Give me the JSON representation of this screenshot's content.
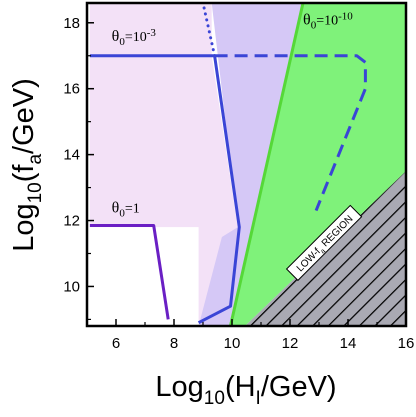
{
  "chart_data": {
    "type": "area",
    "title": "",
    "xlabel": "Log10(HI/GeV)",
    "ylabel": "Log10(fa/GeV)",
    "xlim": [
      5,
      16
    ],
    "ylim": [
      8.8,
      18.6
    ],
    "x_ticks": [
      6,
      8,
      10,
      12,
      14,
      16
    ],
    "y_ticks": [
      10,
      12,
      14,
      16,
      18
    ],
    "grid": false,
    "regions": [
      {
        "name": "",
        "color": "#f3e1f7",
        "points": [
          [
            5.1,
            18.6
          ],
          [
            9.3,
            18.6
          ],
          [
            9.3,
            17
          ],
          [
            10.2,
            11.8
          ],
          [
            10.45,
            9.5
          ],
          [
            10.45,
            8.8
          ],
          [
            8.85,
            8.8
          ],
          [
            8.85,
            11.8
          ],
          [
            5.1,
            11.8
          ]
        ]
      },
      {
        "name": "",
        "color": "#d5c8f6",
        "points": [
          [
            9.3,
            18.6
          ],
          [
            12.45,
            18.6
          ],
          [
            9.95,
            8.8
          ],
          [
            8.85,
            8.8
          ],
          [
            9.65,
            11.5
          ],
          [
            10.2,
            11.8
          ]
        ]
      },
      {
        "name": "",
        "color": "#7ff27a",
        "points": [
          [
            12.45,
            18.6
          ],
          [
            16,
            18.6
          ],
          [
            16,
            13.5
          ],
          [
            10.45,
            8.8
          ],
          [
            9.9,
            8.8
          ]
        ]
      },
      {
        "name": "",
        "color": "#a9a9b3",
        "hatched": true,
        "points": [
          [
            16,
            13.5
          ],
          [
            16,
            8.8
          ],
          [
            10.45,
            8.8
          ]
        ]
      }
    ],
    "series": [
      {
        "name": "",
        "color": "#3a45d6",
        "style": "solid",
        "x": [
          5.1,
          9.4,
          10.25,
          9.95,
          8.85
        ],
        "y": [
          17,
          17,
          11.8,
          9.4,
          8.9
        ]
      },
      {
        "name": "",
        "color": "#3a45d6",
        "style": "dotted",
        "x": [
          9.4,
          9.0
        ],
        "y": [
          17,
          18.6
        ]
      },
      {
        "name": "",
        "color": "#3a45d6",
        "style": "dashed",
        "x": [
          9.4,
          14.3,
          14.6,
          14.6,
          12.9
        ],
        "y": [
          17,
          17,
          16.8,
          16.0,
          12.3
        ]
      },
      {
        "name": "",
        "color": "#6a1fc4",
        "style": "solid",
        "x": [
          5.1,
          7.3,
          7.8
        ],
        "y": [
          11.85,
          11.85,
          9.0
        ]
      },
      {
        "name": "",
        "color": "#55d838",
        "style": "solid",
        "x": [
          12.45,
          9.95
        ],
        "y": [
          18.6,
          8.8
        ]
      }
    ],
    "annotations": [
      {
        "text": "θ0=10-3",
        "base": "θ",
        "sub": "0",
        "mid": "=10",
        "sup": "-3",
        "x": 5.85,
        "y": 17.45
      },
      {
        "text": "θ0=10-10",
        "base": "θ",
        "sub": "0",
        "mid": "=10",
        "sup": "-10",
        "x": 12.45,
        "y": 17.95
      },
      {
        "text": "θ0=1",
        "base": "θ",
        "sub": "0",
        "mid": "=1",
        "sup": "",
        "x": 5.85,
        "y": 12.25
      },
      {
        "text": "LOW-fa REGION",
        "pre": "LOW-f",
        "sub": "a",
        "post": " REGION",
        "x": 13.2,
        "y": 11.3
      }
    ]
  }
}
